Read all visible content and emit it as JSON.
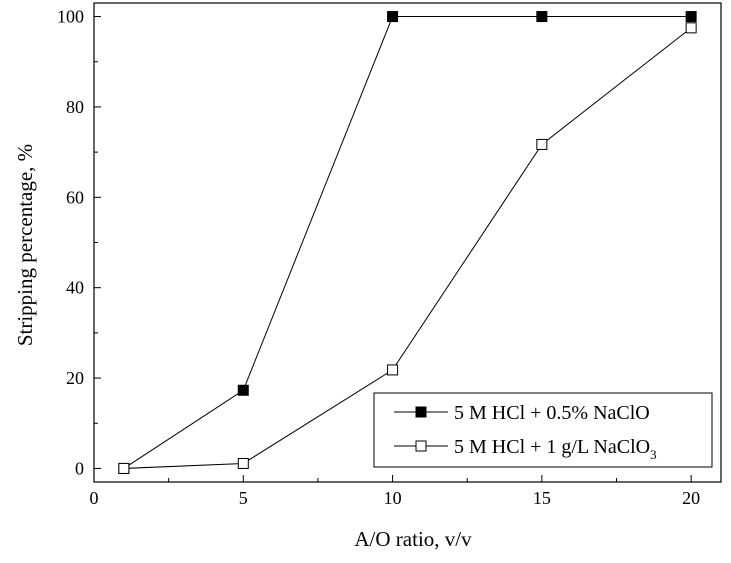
{
  "chart_data": {
    "type": "line",
    "xlabel": "A/O ratio, v/v",
    "ylabel": "Stripping percentage, %",
    "xlim": [
      0,
      21
    ],
    "ylim": [
      -3,
      103
    ],
    "x_ticks": [
      0,
      5,
      10,
      15,
      20
    ],
    "y_ticks": [
      0,
      20,
      40,
      60,
      80,
      100
    ],
    "grid": false,
    "legend_position": "bottom-right",
    "series": [
      {
        "name": "5 M HCl + 0.5% NaClO",
        "marker": "filled-square",
        "color": "#000000",
        "x": [
          1,
          5,
          10,
          15,
          20
        ],
        "y": [
          0,
          17.3,
          100,
          100,
          100
        ]
      },
      {
        "name": "5 M HCl + 1 g/L NaClO",
        "name_subscript": "3",
        "marker": "open-square",
        "color": "#000000",
        "x": [
          1,
          5,
          10,
          15,
          20
        ],
        "y": [
          0,
          1.1,
          21.8,
          71.7,
          97.5
        ]
      }
    ]
  }
}
